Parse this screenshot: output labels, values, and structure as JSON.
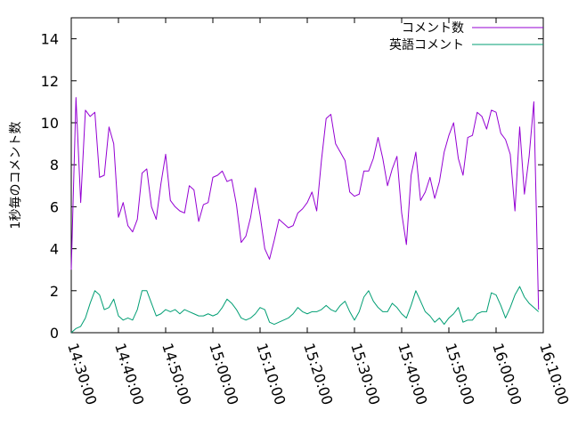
{
  "chart_data": {
    "type": "line",
    "title": "",
    "xlabel": "",
    "ylabel": "1秒毎のコメント数",
    "xlim": [
      "14:30:00",
      "16:10:00"
    ],
    "ylim": [
      0,
      15
    ],
    "x_ticks": [
      "14:30:00",
      "14:40:00",
      "14:50:00",
      "15:00:00",
      "15:10:00",
      "15:20:00",
      "15:30:00",
      "15:40:00",
      "15:50:00",
      "16:00:00",
      "16:10:00"
    ],
    "y_ticks": [
      0,
      2,
      4,
      6,
      8,
      10,
      12,
      14
    ],
    "grid": false,
    "legend_position": "top-right",
    "colors": {
      "series1": "#9400d3",
      "series2": "#009e73"
    },
    "series": [
      {
        "name": "コメント数",
        "points": [
          [
            "14:30:00",
            3.0
          ],
          [
            "14:31:00",
            11.2
          ],
          [
            "14:32:00",
            6.2
          ],
          [
            "14:33:00",
            10.6
          ],
          [
            "14:34:00",
            10.3
          ],
          [
            "14:35:00",
            10.5
          ],
          [
            "14:36:00",
            7.4
          ],
          [
            "14:37:00",
            7.5
          ],
          [
            "14:38:00",
            9.8
          ],
          [
            "14:39:00",
            9.0
          ],
          [
            "14:40:00",
            5.5
          ],
          [
            "14:41:00",
            6.2
          ],
          [
            "14:42:00",
            5.1
          ],
          [
            "14:43:00",
            4.8
          ],
          [
            "14:44:00",
            5.4
          ],
          [
            "14:45:00",
            7.6
          ],
          [
            "14:46:00",
            7.8
          ],
          [
            "14:47:00",
            6.0
          ],
          [
            "14:48:00",
            5.4
          ],
          [
            "14:49:00",
            7.1
          ],
          [
            "14:50:00",
            8.5
          ],
          [
            "14:51:00",
            6.3
          ],
          [
            "14:52:00",
            6.0
          ],
          [
            "14:53:00",
            5.8
          ],
          [
            "14:54:00",
            5.7
          ],
          [
            "14:55:00",
            7.0
          ],
          [
            "14:56:00",
            6.8
          ],
          [
            "14:57:00",
            5.3
          ],
          [
            "14:58:00",
            6.1
          ],
          [
            "14:59:00",
            6.2
          ],
          [
            "15:00:00",
            7.4
          ],
          [
            "15:01:00",
            7.5
          ],
          [
            "15:02:00",
            7.7
          ],
          [
            "15:03:00",
            7.2
          ],
          [
            "15:04:00",
            7.3
          ],
          [
            "15:05:00",
            6.1
          ],
          [
            "15:06:00",
            4.3
          ],
          [
            "15:07:00",
            4.6
          ],
          [
            "15:08:00",
            5.5
          ],
          [
            "15:09:00",
            6.9
          ],
          [
            "15:10:00",
            5.6
          ],
          [
            "15:11:00",
            4.0
          ],
          [
            "15:12:00",
            3.5
          ],
          [
            "15:13:00",
            4.4
          ],
          [
            "15:14:00",
            5.4
          ],
          [
            "15:15:00",
            5.2
          ],
          [
            "15:16:00",
            5.0
          ],
          [
            "15:17:00",
            5.1
          ],
          [
            "15:18:00",
            5.7
          ],
          [
            "15:19:00",
            5.9
          ],
          [
            "15:20:00",
            6.2
          ],
          [
            "15:21:00",
            6.7
          ],
          [
            "15:22:00",
            5.8
          ],
          [
            "15:23:00",
            8.2
          ],
          [
            "15:24:00",
            10.2
          ],
          [
            "15:25:00",
            10.4
          ],
          [
            "15:26:00",
            9.0
          ],
          [
            "15:27:00",
            8.6
          ],
          [
            "15:28:00",
            8.2
          ],
          [
            "15:29:00",
            6.7
          ],
          [
            "15:30:00",
            6.5
          ],
          [
            "15:31:00",
            6.6
          ],
          [
            "15:32:00",
            7.7
          ],
          [
            "15:33:00",
            7.7
          ],
          [
            "15:34:00",
            8.3
          ],
          [
            "15:35:00",
            9.3
          ],
          [
            "15:36:00",
            8.3
          ],
          [
            "15:37:00",
            7.0
          ],
          [
            "15:38:00",
            7.8
          ],
          [
            "15:39:00",
            8.4
          ],
          [
            "15:40:00",
            5.7
          ],
          [
            "15:41:00",
            4.2
          ],
          [
            "15:42:00",
            7.5
          ],
          [
            "15:43:00",
            8.6
          ],
          [
            "15:44:00",
            6.3
          ],
          [
            "15:45:00",
            6.7
          ],
          [
            "15:46:00",
            7.4
          ],
          [
            "15:47:00",
            6.4
          ],
          [
            "15:48:00",
            7.2
          ],
          [
            "15:49:00",
            8.6
          ],
          [
            "15:50:00",
            9.4
          ],
          [
            "15:51:00",
            10.0
          ],
          [
            "15:52:00",
            8.3
          ],
          [
            "15:53:00",
            7.5
          ],
          [
            "15:54:00",
            9.3
          ],
          [
            "15:55:00",
            9.4
          ],
          [
            "15:56:00",
            10.5
          ],
          [
            "15:57:00",
            10.3
          ],
          [
            "15:58:00",
            9.7
          ],
          [
            "15:59:00",
            10.6
          ],
          [
            "16:00:00",
            10.5
          ],
          [
            "16:01:00",
            9.5
          ],
          [
            "16:02:00",
            9.2
          ],
          [
            "16:03:00",
            8.5
          ],
          [
            "16:04:00",
            5.8
          ],
          [
            "16:05:00",
            9.8
          ],
          [
            "16:06:00",
            6.6
          ],
          [
            "16:07:00",
            8.4
          ],
          [
            "16:08:00",
            11.0
          ],
          [
            "16:09:00",
            1.1
          ]
        ]
      },
      {
        "name": "英語コメント",
        "points": [
          [
            "14:30:00",
            0.0
          ],
          [
            "14:31:00",
            0.2
          ],
          [
            "14:32:00",
            0.3
          ],
          [
            "14:33:00",
            0.7
          ],
          [
            "14:34:00",
            1.4
          ],
          [
            "14:35:00",
            2.0
          ],
          [
            "14:36:00",
            1.8
          ],
          [
            "14:37:00",
            1.1
          ],
          [
            "14:38:00",
            1.2
          ],
          [
            "14:39:00",
            1.6
          ],
          [
            "14:40:00",
            0.8
          ],
          [
            "14:41:00",
            0.6
          ],
          [
            "14:42:00",
            0.7
          ],
          [
            "14:43:00",
            0.6
          ],
          [
            "14:44:00",
            1.1
          ],
          [
            "14:45:00",
            2.0
          ],
          [
            "14:46:00",
            2.0
          ],
          [
            "14:47:00",
            1.4
          ],
          [
            "14:48:00",
            0.8
          ],
          [
            "14:49:00",
            0.9
          ],
          [
            "14:50:00",
            1.1
          ],
          [
            "14:51:00",
            1.0
          ],
          [
            "14:52:00",
            1.1
          ],
          [
            "14:53:00",
            0.9
          ],
          [
            "14:54:00",
            1.1
          ],
          [
            "14:55:00",
            1.0
          ],
          [
            "14:56:00",
            0.9
          ],
          [
            "14:57:00",
            0.8
          ],
          [
            "14:58:00",
            0.8
          ],
          [
            "14:59:00",
            0.9
          ],
          [
            "15:00:00",
            0.8
          ],
          [
            "15:01:00",
            0.9
          ],
          [
            "15:02:00",
            1.2
          ],
          [
            "15:03:00",
            1.6
          ],
          [
            "15:04:00",
            1.4
          ],
          [
            "15:05:00",
            1.1
          ],
          [
            "15:06:00",
            0.7
          ],
          [
            "15:07:00",
            0.6
          ],
          [
            "15:08:00",
            0.7
          ],
          [
            "15:09:00",
            0.9
          ],
          [
            "15:10:00",
            1.2
          ],
          [
            "15:11:00",
            1.1
          ],
          [
            "15:12:00",
            0.5
          ],
          [
            "15:13:00",
            0.4
          ],
          [
            "15:14:00",
            0.5
          ],
          [
            "15:15:00",
            0.6
          ],
          [
            "15:16:00",
            0.7
          ],
          [
            "15:17:00",
            0.9
          ],
          [
            "15:18:00",
            1.2
          ],
          [
            "15:19:00",
            1.0
          ],
          [
            "15:20:00",
            0.9
          ],
          [
            "15:21:00",
            1.0
          ],
          [
            "15:22:00",
            1.0
          ],
          [
            "15:23:00",
            1.1
          ],
          [
            "15:24:00",
            1.3
          ],
          [
            "15:25:00",
            1.1
          ],
          [
            "15:26:00",
            1.0
          ],
          [
            "15:27:00",
            1.3
          ],
          [
            "15:28:00",
            1.5
          ],
          [
            "15:29:00",
            1.0
          ],
          [
            "15:30:00",
            0.6
          ],
          [
            "15:31:00",
            1.0
          ],
          [
            "15:32:00",
            1.7
          ],
          [
            "15:33:00",
            2.0
          ],
          [
            "15:34:00",
            1.5
          ],
          [
            "15:35:00",
            1.2
          ],
          [
            "15:36:00",
            1.0
          ],
          [
            "15:37:00",
            1.0
          ],
          [
            "15:38:00",
            1.4
          ],
          [
            "15:39:00",
            1.2
          ],
          [
            "15:40:00",
            0.9
          ],
          [
            "15:41:00",
            0.7
          ],
          [
            "15:42:00",
            1.3
          ],
          [
            "15:43:00",
            2.0
          ],
          [
            "15:44:00",
            1.5
          ],
          [
            "15:45:00",
            1.0
          ],
          [
            "15:46:00",
            0.8
          ],
          [
            "15:47:00",
            0.5
          ],
          [
            "15:48:00",
            0.7
          ],
          [
            "15:49:00",
            0.4
          ],
          [
            "15:50:00",
            0.7
          ],
          [
            "15:51:00",
            0.9
          ],
          [
            "15:52:00",
            1.2
          ],
          [
            "15:53:00",
            0.5
          ],
          [
            "15:54:00",
            0.6
          ],
          [
            "15:55:00",
            0.6
          ],
          [
            "15:56:00",
            0.9
          ],
          [
            "15:57:00",
            1.0
          ],
          [
            "15:58:00",
            1.0
          ],
          [
            "15:59:00",
            1.9
          ],
          [
            "16:00:00",
            1.8
          ],
          [
            "16:01:00",
            1.3
          ],
          [
            "16:02:00",
            0.7
          ],
          [
            "16:03:00",
            1.2
          ],
          [
            "16:04:00",
            1.8
          ],
          [
            "16:05:00",
            2.2
          ],
          [
            "16:06:00",
            1.7
          ],
          [
            "16:07:00",
            1.4
          ],
          [
            "16:08:00",
            1.2
          ],
          [
            "16:09:00",
            1.0
          ]
        ]
      }
    ]
  }
}
